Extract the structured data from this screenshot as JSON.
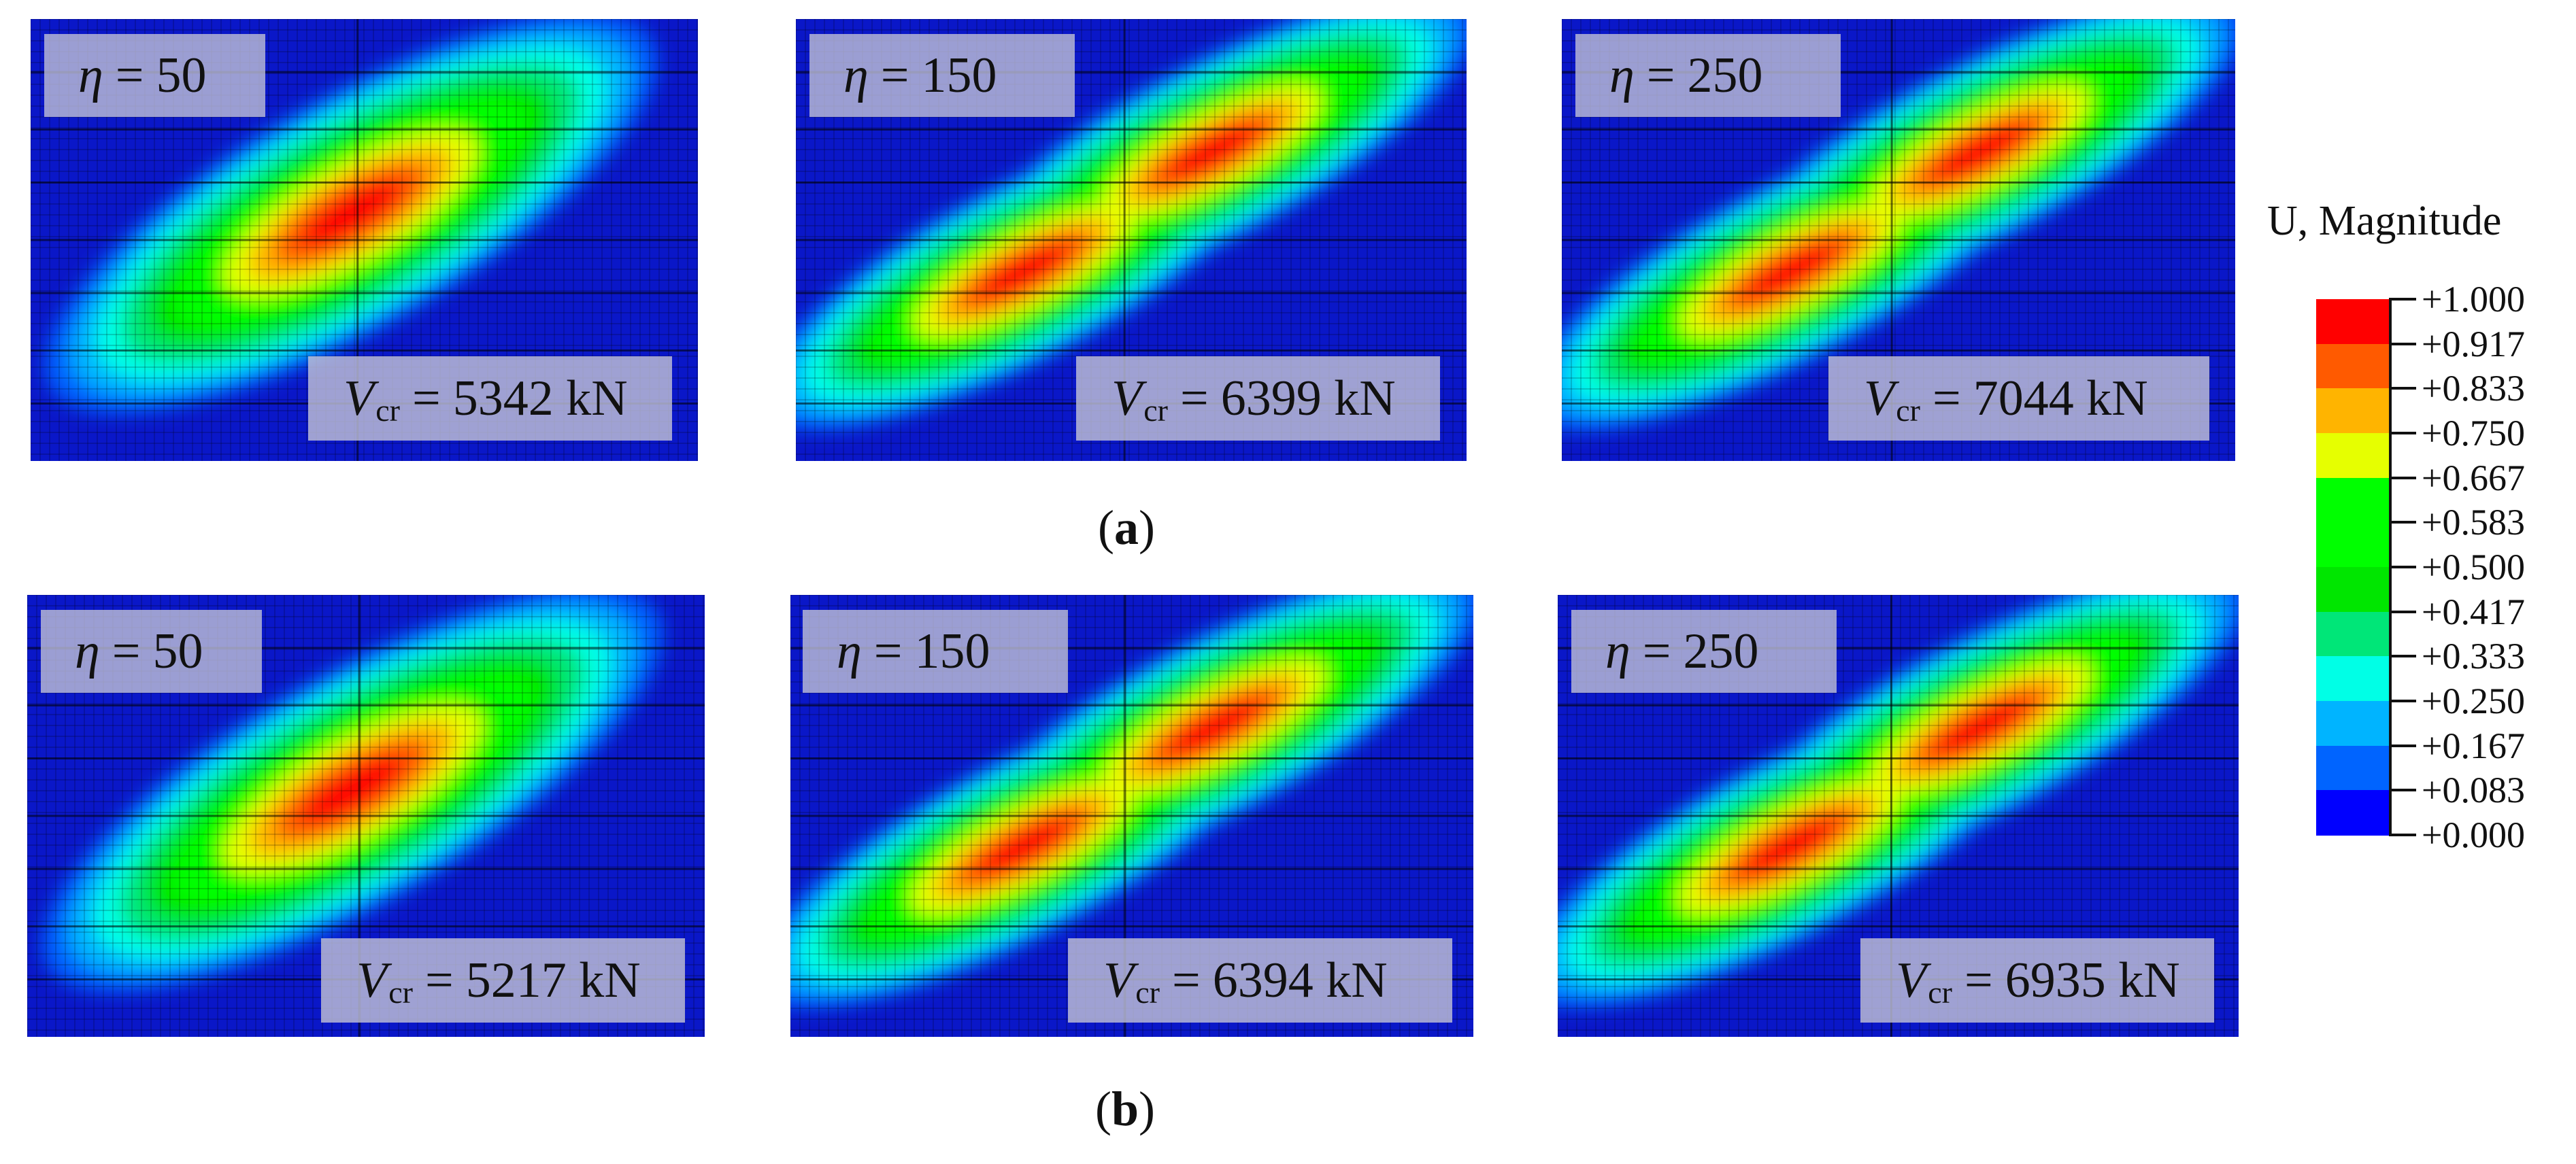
{
  "panels": [
    {
      "eta_symbol": "η",
      "eta_value": "50",
      "v_symbol": "V",
      "v_sub": "cr",
      "v_value": "5342 kN"
    },
    {
      "eta_symbol": "η",
      "eta_value": "150",
      "v_symbol": "V",
      "v_sub": "cr",
      "v_value": "6399 kN"
    },
    {
      "eta_symbol": "η",
      "eta_value": "250",
      "v_symbol": "V",
      "v_sub": "cr",
      "v_value": "7044 kN"
    },
    {
      "eta_symbol": "η",
      "eta_value": "50",
      "v_symbol": "V",
      "v_sub": "cr",
      "v_value": "5217 kN"
    },
    {
      "eta_symbol": "η",
      "eta_value": "150",
      "v_symbol": "V",
      "v_sub": "cr",
      "v_value": "6394 kN"
    },
    {
      "eta_symbol": "η",
      "eta_value": "250",
      "v_symbol": "V",
      "v_sub": "cr",
      "v_value": "6935 kN"
    }
  ],
  "captions": {
    "a": "a",
    "b": "b"
  },
  "legend": {
    "title": "U, Magnitude",
    "ticks": [
      "+1.000",
      "+0.917",
      "+0.833",
      "+0.750",
      "+0.667",
      "+0.583",
      "+0.500",
      "+0.417",
      "+0.333",
      "+0.250",
      "+0.167",
      "+0.083",
      "+0.000"
    ],
    "colors": [
      "#ff0000",
      "#ff5a00",
      "#ffb400",
      "#e6ff00",
      "#00ff00",
      "#00ff00",
      "#00e600",
      "#00e678",
      "#00ffe6",
      "#00b4ff",
      "#0064ff",
      "#0000ff"
    ]
  }
}
